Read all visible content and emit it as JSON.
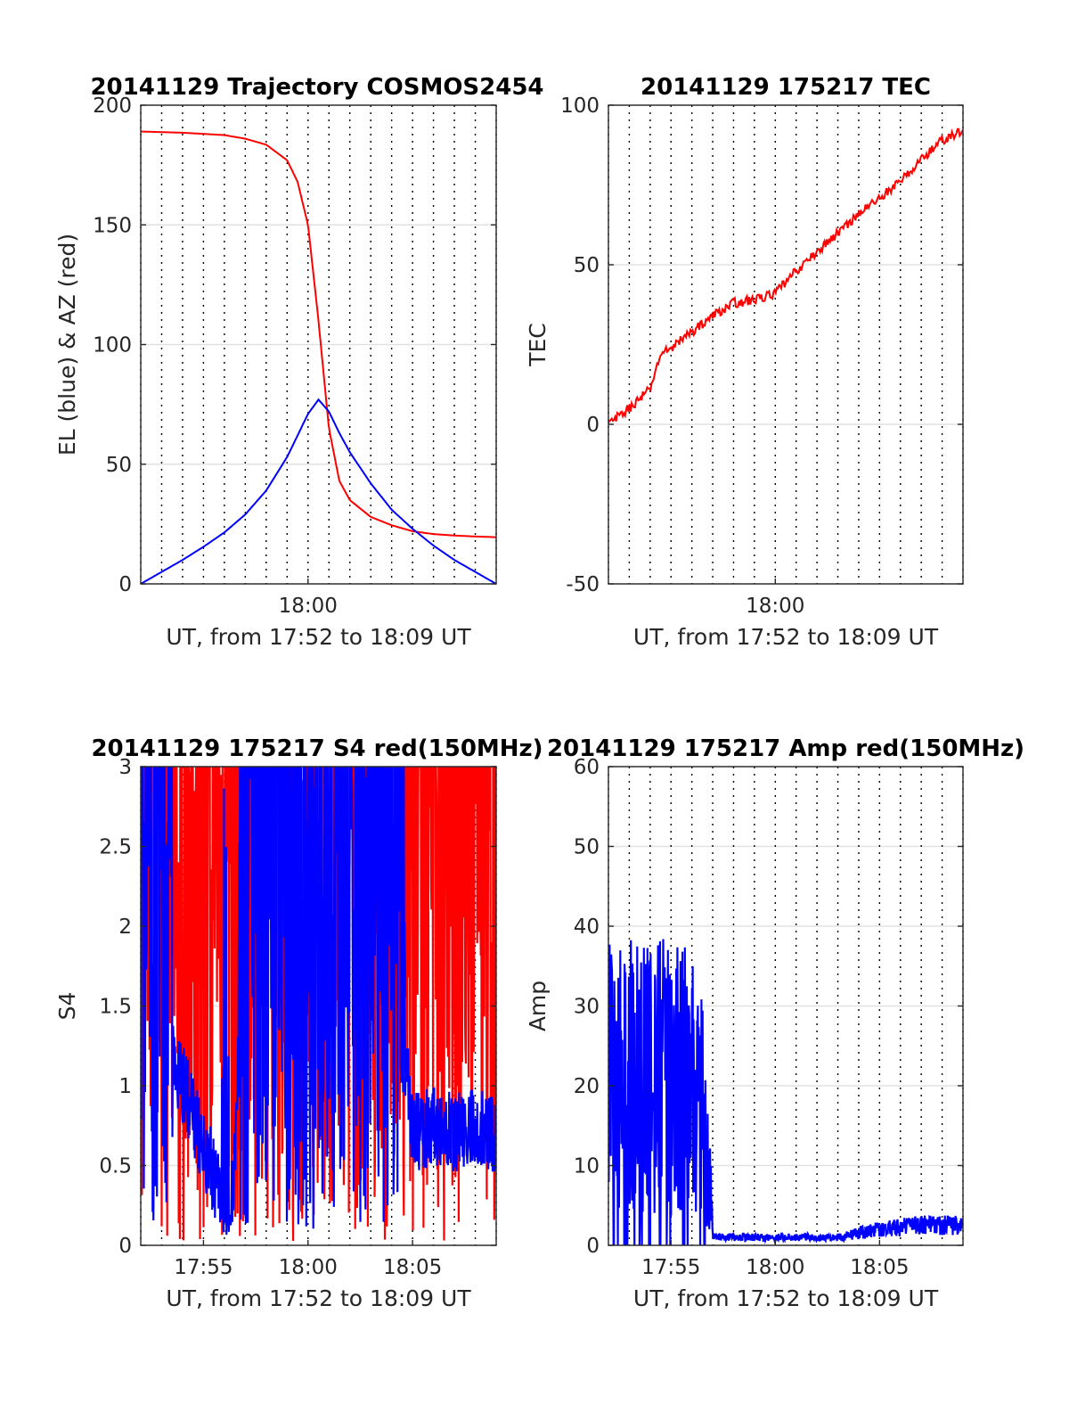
{
  "chart_data": [
    {
      "type": "line",
      "title": "20141129 Trajectory COSMOS2454",
      "xlabel": "UT, from 17:52 to 18:09 UT",
      "ylabel": "EL (blue) & AZ (red)",
      "xlim": [
        "17:52",
        "18:09"
      ],
      "ylim": [
        0,
        200
      ],
      "x_tick_labels": [
        "18:00"
      ],
      "y_tick_labels": [
        "0",
        "50",
        "100",
        "150",
        "200"
      ],
      "grid": "horizontal major at y ticks; dotted vertical minute lines",
      "colors": {
        "AZ": "#ff0000",
        "EL": "#0000ff"
      },
      "series": [
        {
          "color": "#ff0000",
          "x": [
            "17:52",
            "17:54",
            "17:56",
            "17:57",
            "17:58",
            "17:59",
            "17:59:30",
            "18:00",
            "18:00:30",
            "18:01",
            "18:01:30",
            "18:02",
            "18:03",
            "18:04",
            "18:05",
            "18:06",
            "18:07",
            "18:08",
            "18:09"
          ],
          "values": [
            189,
            188.5,
            187.5,
            186,
            183.5,
            177,
            168,
            150,
            110,
            65,
            43,
            35,
            28,
            24.5,
            22,
            20.8,
            20.2,
            19.8,
            19.5
          ]
        },
        {
          "color": "#0000ff",
          "x": [
            "17:52",
            "17:53",
            "17:54",
            "17:55",
            "17:56",
            "17:57",
            "17:58",
            "17:59",
            "17:59:30",
            "18:00",
            "18:00:30",
            "18:01",
            "18:01:30",
            "18:02",
            "18:03",
            "18:04",
            "18:05",
            "18:06",
            "18:07",
            "18:08",
            "18:09"
          ],
          "values": [
            0,
            5,
            10,
            15.5,
            21.5,
            29,
            39,
            53,
            62,
            71,
            77,
            72,
            63,
            55,
            42,
            31,
            23,
            16,
            10,
            5,
            0
          ]
        }
      ]
    },
    {
      "type": "line",
      "title": "20141129 175217 TEC",
      "xlabel": "UT, from 17:52 to 18:09 UT",
      "ylabel": "TEC",
      "xlim": [
        "17:52",
        "18:09"
      ],
      "ylim": [
        -50,
        100
      ],
      "x_tick_labels": [
        "18:00"
      ],
      "y_tick_labels": [
        "-50",
        "0",
        "50",
        "100"
      ],
      "grid": "horizontal major at y ticks; dotted vertical minute lines",
      "colors": {
        "TEC": "#ff0000"
      },
      "series": [
        {
          "color": "#ff0000",
          "x": [
            "17:52",
            "17:53",
            "17:54",
            "17:54:30",
            "17:55",
            "17:56",
            "17:57",
            "17:58",
            "17:59",
            "18:00",
            "18:01",
            "18:02",
            "18:03",
            "18:04",
            "18:05",
            "18:06",
            "18:07",
            "18:08",
            "18:09"
          ],
          "values": [
            0,
            5,
            11,
            22,
            24,
            29,
            34,
            38,
            39,
            41,
            48,
            54,
            60,
            66,
            71,
            76,
            83,
            89,
            92
          ]
        }
      ]
    },
    {
      "type": "line",
      "title": "20141129 175217 S4 red(150MHz)",
      "xlabel": "UT, from 17:52 to 18:09 UT",
      "ylabel": "S4",
      "xlim": [
        "17:52",
        "18:09"
      ],
      "ylim": [
        0,
        3
      ],
      "x_tick_labels": [
        "17:55",
        "18:00",
        "18:05"
      ],
      "y_tick_labels": [
        "0",
        "0.5",
        "1",
        "1.5",
        "2",
        "2.5",
        "3"
      ],
      "grid": "horizontal major at y ticks; dotted vertical minute lines",
      "colors": {
        "red": "#ff0000",
        "blue": "#0000ff"
      },
      "series": [
        {
          "color": "#ff0000",
          "description_of_shape": "rapid spikes between 0 and 3 over whole interval",
          "x": [
            "17:52",
            "17:57",
            "18:00",
            "18:03",
            "18:05",
            "18:09"
          ],
          "values": [
            3,
            2.5,
            2.2,
            2.6,
            3,
            3
          ]
        },
        {
          "color": "#0000ff",
          "x": [
            "17:52",
            "17:56:20",
            "17:57",
            "17:58",
            "18:00",
            "18:02",
            "18:04",
            "18:05",
            "18:06",
            "18:07",
            "18:08",
            "18:09"
          ],
          "values": [
            1.8,
            0.1,
            2.2,
            2.4,
            2.3,
            2.2,
            2.1,
            0.7,
            0.75,
            0.7,
            0.75,
            0.7
          ]
        }
      ]
    },
    {
      "type": "line",
      "title": "20141129 175217 Amp red(150MHz)",
      "xlabel": "UT, from 17:52 to 18:09 UT",
      "ylabel": "Amp",
      "xlim": [
        "17:52",
        "18:09"
      ],
      "ylim": [
        0,
        60
      ],
      "x_tick_labels": [
        "17:55",
        "18:00",
        "18:05"
      ],
      "y_tick_labels": [
        "0",
        "10",
        "20",
        "30",
        "40",
        "50",
        "60"
      ],
      "grid": "horizontal major at y ticks; dotted vertical minute lines",
      "colors": {
        "Amp": "#0000ff"
      },
      "series": [
        {
          "color": "#0000ff",
          "x": [
            "17:52",
            "17:53",
            "17:54",
            "17:55",
            "17:56",
            "17:56:30",
            "17:57",
            "17:59",
            "18:01",
            "18:02",
            "18:03",
            "18:05",
            "18:07",
            "18:09"
          ],
          "values": [
            36,
            37,
            36,
            37,
            36,
            35,
            1,
            1,
            1,
            1,
            1,
            2,
            2.5,
            2.5
          ]
        }
      ]
    }
  ]
}
